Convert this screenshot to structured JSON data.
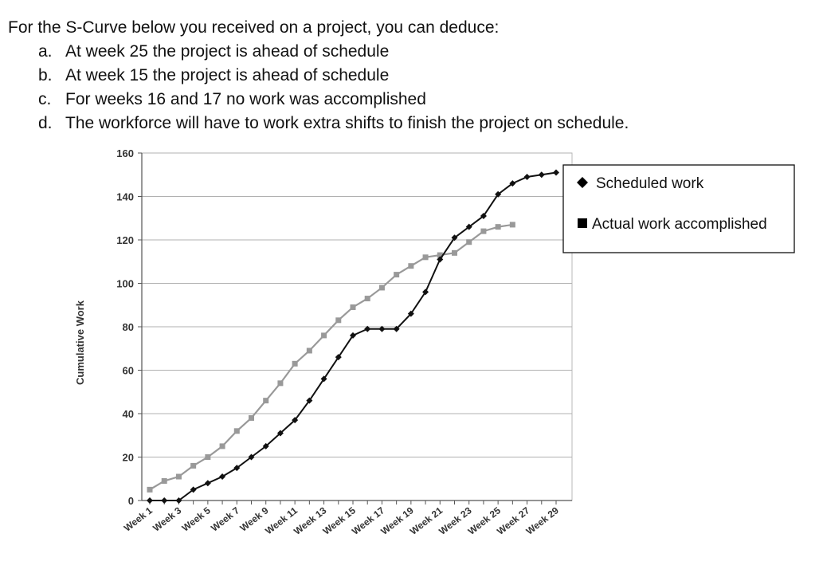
{
  "question": {
    "stem": "For the S-Curve below you received on a project, you can deduce:",
    "options": [
      {
        "letter": "a.",
        "text": "At week 25 the project is ahead of schedule"
      },
      {
        "letter": "b.",
        "text": "At week 15 the project is ahead of schedule"
      },
      {
        "letter": "c.",
        "text": "For weeks 16 and 17 no work was accomplished"
      },
      {
        "letter": "d.",
        "text": "The workforce will have to work extra shifts to finish the project on schedule."
      }
    ]
  },
  "chart_data": {
    "type": "line",
    "ylabel": "Cumulative Work",
    "xlabel": "",
    "ylim": [
      0,
      160
    ],
    "yticks": [
      0,
      20,
      40,
      60,
      80,
      100,
      120,
      140,
      160
    ],
    "grid": true,
    "legend_position": "right",
    "x": [
      "Week 1",
      "Week 2",
      "Week 3",
      "Week 4",
      "Week 5",
      "Week 6",
      "Week 7",
      "Week 8",
      "Week 9",
      "Week 10",
      "Week 11",
      "Week 12",
      "Week 13",
      "Week 14",
      "Week 15",
      "Week 16",
      "Week 17",
      "Week 18",
      "Week 19",
      "Week 20",
      "Week 21",
      "Week 22",
      "Week 23",
      "Week 24",
      "Week 25",
      "Week 26",
      "Week 27",
      "Week 28",
      "Week 29"
    ],
    "xtick_labels": [
      "Week 1",
      "Week 3",
      "Week 5",
      "Week 7",
      "Week 9",
      "Week 11",
      "Week 13",
      "Week 15",
      "Week 17",
      "Week 19",
      "Week 21",
      "Week 23",
      "Week 25",
      "Week 27",
      "Week 29"
    ],
    "series": [
      {
        "name": "Scheduled work",
        "marker": "diamond",
        "color": "#111111",
        "values": [
          0,
          0,
          0,
          5,
          8,
          11,
          15,
          20,
          25,
          31,
          37,
          46,
          56,
          66,
          76,
          79,
          79,
          79,
          86,
          96,
          111,
          121,
          126,
          131,
          141,
          146,
          149,
          150,
          151
        ]
      },
      {
        "name": "Actual work accomplished",
        "marker": "square",
        "color": "#999999",
        "values": [
          5,
          9,
          11,
          16,
          20,
          25,
          32,
          38,
          46,
          54,
          63,
          69,
          76,
          83,
          89,
          93,
          98,
          104,
          108,
          112,
          113,
          114,
          119,
          124,
          126,
          127,
          null,
          null,
          null
        ]
      }
    ]
  }
}
